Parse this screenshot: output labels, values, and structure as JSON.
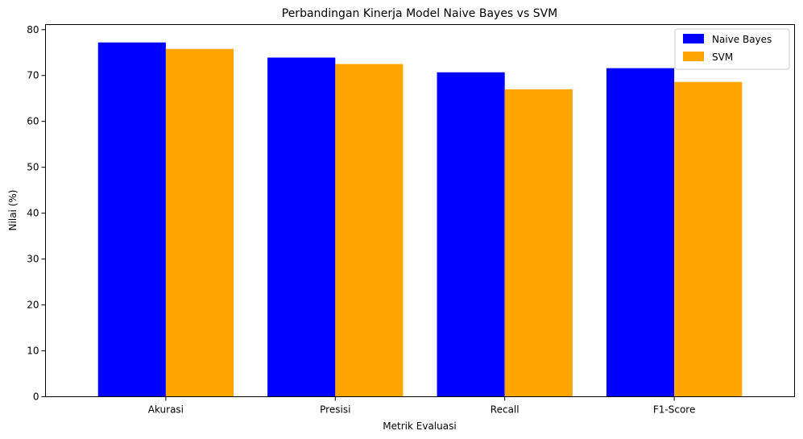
{
  "chart_data": {
    "type": "bar",
    "title": "Perbandingan Kinerja Model Naive Bayes vs SVM",
    "xlabel": "Metrik Evaluasi",
    "ylabel": "Nilai (%)",
    "categories": [
      "Akurasi",
      "Presisi",
      "Recall",
      "F1-Score"
    ],
    "series": [
      {
        "name": "Naive Bayes",
        "color": "#0000ff",
        "values": [
          77.2,
          73.9,
          70.7,
          71.6
        ]
      },
      {
        "name": "SVM",
        "color": "#ffa500",
        "values": [
          75.8,
          72.5,
          67.0,
          68.6
        ]
      }
    ],
    "ylim": [
      0,
      81.1
    ],
    "yticks": [
      0,
      10,
      20,
      30,
      40,
      50,
      60,
      70,
      80
    ],
    "grid": false,
    "legend_position": "top-right"
  }
}
